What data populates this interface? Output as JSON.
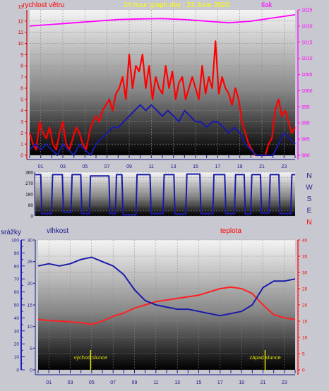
{
  "colors": {
    "page_bg": "#c8c8d0",
    "grid": "#8a8a8a",
    "wind_gust": "#ff0000",
    "wind_avg": "#1a1aaa",
    "pressure": "#ff00ff",
    "direction": "#1a1aaa",
    "humidity": "#1a1aaa",
    "temperature": "#ff2020",
    "rain_axis": "#2020c0",
    "sun_marker": "#e0e000"
  },
  "chart_data": [
    {
      "type": "line",
      "panel": "wind-pressure",
      "title": "24 hour graph day : 23 June 2020",
      "left_axis": {
        "label": "rychlost větru",
        "ticks": [
          0,
          1,
          2,
          3,
          4,
          5,
          6,
          7,
          8,
          9,
          10,
          11,
          12
        ],
        "top_label": "13",
        "range": [
          0,
          13
        ]
      },
      "right_axis": {
        "label": "tlak",
        "ticks": [
          980,
          985,
          990,
          995,
          1000,
          1005,
          1010,
          1015,
          1020,
          1025
        ],
        "range": [
          980,
          1025
        ]
      },
      "x_ticks": [
        "01",
        "03",
        "05",
        "07",
        "09",
        "11",
        "13",
        "15",
        "17",
        "19",
        "21",
        "23"
      ],
      "x_range": [
        0,
        24
      ],
      "series": [
        {
          "role": "gust",
          "x": [
            0,
            0.3,
            0.6,
            0.9,
            1.2,
            1.5,
            1.8,
            2.1,
            2.4,
            2.7,
            3,
            3.3,
            3.6,
            3.9,
            4.2,
            4.5,
            4.8,
            5.1,
            5.4,
            5.7,
            6,
            6.3,
            6.6,
            6.9,
            7.2,
            7.5,
            7.8,
            8.1,
            8.4,
            8.7,
            9,
            9.3,
            9.6,
            9.9,
            10.2,
            10.5,
            10.8,
            11.1,
            11.4,
            11.7,
            12,
            12.3,
            12.6,
            12.9,
            13.2,
            13.5,
            13.8,
            14.1,
            14.4,
            14.7,
            15,
            15.3,
            15.6,
            15.9,
            16.2,
            16.5,
            16.8,
            17.1,
            17.4,
            17.7,
            18,
            18.3,
            18.6,
            18.9,
            19.2,
            19.5,
            19.8,
            20.1,
            20.4,
            20.7,
            21,
            21.3,
            21.6,
            21.9,
            22.2,
            22.5,
            22.8,
            23.1,
            23.4,
            23.7,
            24
          ],
          "values": [
            2,
            1,
            0.5,
            3,
            2,
            1.5,
            2.5,
            1,
            0.5,
            2,
            3,
            1,
            0.5,
            1.5,
            2.5,
            2,
            1,
            0.5,
            2,
            3,
            3.5,
            3,
            4,
            4.5,
            5,
            4,
            5.5,
            6,
            7,
            5,
            9,
            6,
            8,
            7.5,
            9,
            6,
            8,
            5,
            7,
            6,
            5.5,
            8,
            6,
            7.5,
            5,
            6.5,
            7,
            5,
            6,
            7,
            6,
            5,
            8,
            5.5,
            7,
            6,
            10.2,
            5.5,
            7,
            6,
            5.5,
            4.5,
            6,
            5,
            3,
            2,
            1,
            0.5,
            0,
            0,
            0,
            0,
            1,
            1.5,
            4,
            5,
            3.5,
            4,
            3,
            2,
            2.5
          ]
        },
        {
          "role": "average",
          "x": [
            0,
            0.5,
            1,
            1.5,
            2,
            2.5,
            3,
            3.5,
            4,
            4.5,
            5,
            5.5,
            6,
            6.5,
            7,
            7.5,
            8,
            8.5,
            9,
            9.5,
            10,
            10.5,
            11,
            11.5,
            12,
            12.5,
            13,
            13.5,
            14,
            14.5,
            15,
            15.5,
            16,
            16.5,
            17,
            17.5,
            18,
            18.5,
            19,
            19.5,
            20,
            20.5,
            21,
            21.5,
            22,
            22.5,
            23,
            23.5,
            24
          ],
          "values": [
            0.5,
            1,
            0.5,
            1,
            0.5,
            0,
            1,
            0.5,
            0,
            1,
            0.5,
            0,
            1,
            1.5,
            2,
            2.5,
            2.5,
            3,
            3.5,
            4,
            4.5,
            4,
            4.5,
            4,
            3.5,
            4,
            3.5,
            3,
            4,
            3.5,
            3,
            3,
            2.5,
            3,
            3,
            2.5,
            2,
            2.5,
            2,
            1,
            0.5,
            0,
            0,
            0,
            0,
            1,
            2,
            1.5,
            1
          ]
        },
        {
          "role": "pressure",
          "x": [
            0,
            2,
            4,
            6,
            8,
            10,
            12,
            14,
            16,
            18,
            20,
            22,
            24
          ],
          "values": [
            1020,
            1020.5,
            1021,
            1021.5,
            1022,
            1022.2,
            1022.3,
            1022,
            1021.5,
            1021,
            1021.5,
            1022.5,
            1023.5
          ]
        }
      ]
    },
    {
      "type": "line",
      "panel": "wind-direction",
      "left_axis": {
        "ticks": [
          0,
          45,
          90,
          135,
          180,
          225,
          270,
          315,
          360
        ],
        "range": [
          0,
          360
        ]
      },
      "right_labels": [
        "N",
        "W",
        "S",
        "E",
        "N"
      ],
      "x_range": [
        0,
        24
      ],
      "series": [
        {
          "role": "direction",
          "x": [
            0,
            0.5,
            0.6,
            1.5,
            1.6,
            2.5,
            2.6,
            3.3,
            3.4,
            4.2,
            4.3,
            5,
            5.1,
            6.8,
            6.9,
            7.4,
            7.5,
            8,
            8.1,
            9.3,
            9.4,
            10.6,
            10.7,
            11.8,
            11.9,
            12.8,
            12.9,
            13.9,
            14,
            15.2,
            15.3,
            16.4,
            16.5,
            17.5,
            17.6,
            18.4,
            18.5,
            19.3,
            19.4,
            19.9,
            20,
            20.8,
            20.9,
            21.6,
            21.7,
            22.5,
            22.6,
            23.6,
            23.7,
            24
          ],
          "values": [
            340,
            340,
            20,
            20,
            340,
            340,
            30,
            30,
            340,
            340,
            20,
            20,
            330,
            330,
            20,
            20,
            340,
            340,
            10,
            10,
            340,
            340,
            20,
            20,
            340,
            340,
            15,
            15,
            345,
            345,
            20,
            20,
            340,
            340,
            20,
            20,
            340,
            340,
            15,
            15,
            340,
            340,
            25,
            25,
            340,
            340,
            20,
            20,
            340,
            340
          ]
        }
      ]
    },
    {
      "type": "line",
      "panel": "humidity-temperature",
      "labels": {
        "rain": "srážky",
        "humidity": "vlhkost",
        "temperature": "teplota"
      },
      "rain_axis": {
        "ticks": [
          0,
          5,
          10,
          15,
          20,
          25,
          30,
          35,
          40,
          45,
          50,
          55,
          60,
          65,
          70,
          75,
          80,
          85,
          90,
          95,
          100
        ],
        "tick_labels": [
          0,
          10,
          20,
          30,
          40,
          50,
          60,
          70,
          80,
          90,
          100
        ],
        "range": [
          0,
          100
        ]
      },
      "humidity_axis": {
        "ticks": [
          0,
          5,
          10,
          15,
          20,
          25,
          30
        ],
        "range": [
          0,
          30
        ]
      },
      "temperature_axis": {
        "ticks": [
          0,
          5,
          10,
          15,
          20,
          25,
          30,
          35,
          40
        ],
        "range": [
          0,
          40
        ]
      },
      "x_ticks": [
        "01",
        "03",
        "05",
        "07",
        "09",
        "11",
        "13",
        "15",
        "17",
        "19",
        "21",
        "23"
      ],
      "x_range": [
        0,
        24
      ],
      "annotations": [
        {
          "text": "východ slunce",
          "x": 4.9
        },
        {
          "text": "západ slunce",
          "x": 21.2
        }
      ],
      "series": [
        {
          "role": "humidity",
          "x": [
            0,
            1,
            2,
            3,
            4,
            5,
            6,
            7,
            8,
            9,
            10,
            11,
            12,
            13,
            14,
            15,
            16,
            17,
            18,
            19,
            20,
            21,
            22,
            23,
            24
          ],
          "values": [
            24,
            24.5,
            24,
            24.5,
            25.5,
            26,
            25,
            24,
            22,
            18.5,
            16,
            15,
            14.5,
            14,
            14,
            13.5,
            13,
            12.5,
            13,
            13.5,
            15,
            19,
            20.5,
            20.5,
            21
          ]
        },
        {
          "role": "temperature",
          "x": [
            0,
            1,
            2,
            3,
            4,
            5,
            6,
            7,
            8,
            9,
            10,
            11,
            12,
            13,
            14,
            15,
            16,
            17,
            18,
            19,
            20,
            21,
            22,
            23,
            24
          ],
          "values": [
            15.5,
            15.2,
            15,
            14.8,
            14.5,
            14,
            15,
            16.5,
            17.5,
            19,
            20,
            21,
            21.5,
            22,
            22.5,
            23,
            24,
            25,
            25.5,
            25,
            23.5,
            20,
            17,
            16,
            15.5
          ]
        }
      ]
    }
  ]
}
